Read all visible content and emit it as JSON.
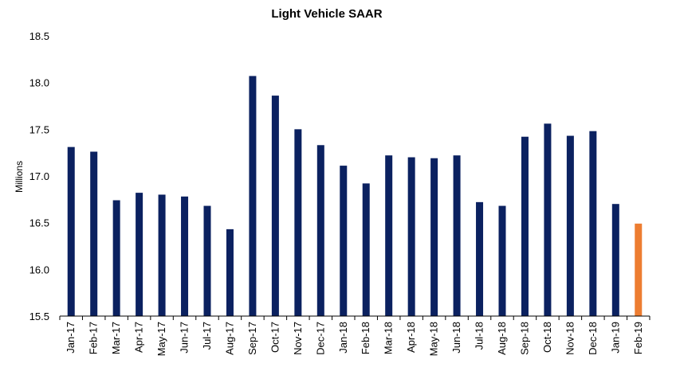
{
  "chart_data": {
    "type": "bar",
    "title": "Light Vehicle SAAR",
    "xlabel": "",
    "ylabel": "Millions",
    "ylim": [
      15.5,
      18.5
    ],
    "yticks": [
      "15.5",
      "16.0",
      "16.5",
      "17.0",
      "17.5",
      "18.0",
      "18.5"
    ],
    "grid": false,
    "legend": "none",
    "categories": [
      "Jan-17",
      "Feb-17",
      "Mar-17",
      "Apr-17",
      "May-17",
      "Jun-17",
      "Jul-17",
      "Aug-17",
      "Sep-17",
      "Oct-17",
      "Nov-17",
      "Dec-17",
      "Jan-18",
      "Feb-18",
      "Mar-18",
      "Apr-18",
      "May-18",
      "Jun-18",
      "Jul-18",
      "Aug-18",
      "Sep-18",
      "Oct-18",
      "Nov-18",
      "Dec-18",
      "Jan-19",
      "Feb-19"
    ],
    "values": [
      17.31,
      17.26,
      16.74,
      16.82,
      16.8,
      16.78,
      16.68,
      16.43,
      18.07,
      17.86,
      17.5,
      17.33,
      17.11,
      16.92,
      17.22,
      17.2,
      17.19,
      17.22,
      16.72,
      16.68,
      17.42,
      17.56,
      17.43,
      17.48,
      16.7,
      16.49
    ],
    "colors": {
      "bar": "#0B2160",
      "highlight": "#ED7D31",
      "axis": "#000000"
    },
    "highlight_index": 25
  }
}
